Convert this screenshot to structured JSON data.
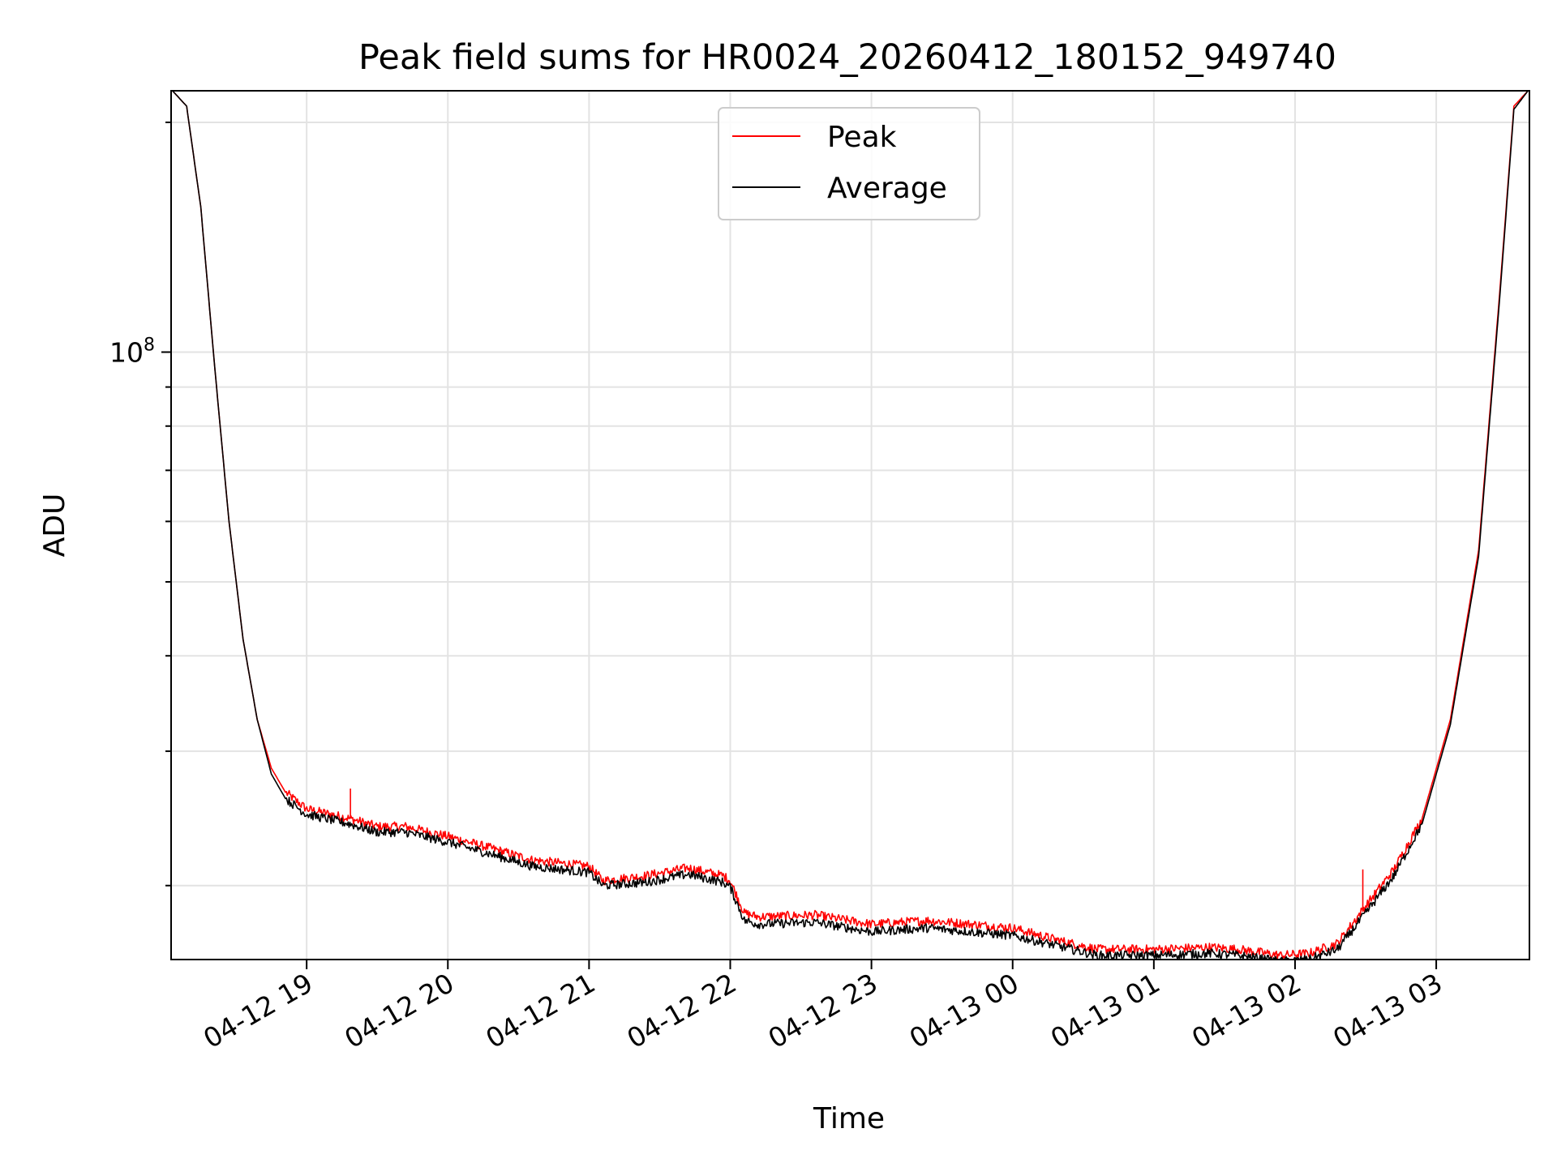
{
  "chart_data": {
    "type": "line",
    "title": "Peak field sums for HR0024_20260412_180152_949740",
    "xlabel": "Time",
    "ylabel": "ADU",
    "yscale": "log",
    "x_unit": "hours since 2026-04-12 00:00",
    "xlim": [
      18.04,
      27.66
    ],
    "ylim": [
      16000000,
      220000000
    ],
    "x_tick_values": [
      19,
      20,
      21,
      22,
      23,
      24,
      25,
      26,
      27
    ],
    "x_tick_labels": [
      "04-12 19",
      "04-12 20",
      "04-12 21",
      "04-12 22",
      "04-12 23",
      "04-13 00",
      "04-13 01",
      "04-13 02",
      "04-13 03"
    ],
    "y_major_ticks": [
      {
        "value": 100000000,
        "base": "10",
        "exp": "8"
      }
    ],
    "y_minor_ticks": [
      20000000,
      30000000,
      40000000,
      50000000,
      60000000,
      70000000,
      80000000,
      90000000,
      200000000
    ],
    "grid": true,
    "legend": {
      "position": "upper-center",
      "entries": [
        "Peak",
        "Average"
      ]
    },
    "series": [
      {
        "name": "Peak",
        "color": "#ff0000",
        "x": [
          18.05,
          18.15,
          18.25,
          18.35,
          18.45,
          18.55,
          18.65,
          18.75,
          18.85,
          19.0,
          19.3,
          19.5,
          19.7,
          20.0,
          20.3,
          20.6,
          21.0,
          21.1,
          21.4,
          21.7,
          21.95,
          22.0,
          22.1,
          22.2,
          22.6,
          23.0,
          23.4,
          23.7,
          24.0,
          24.3,
          24.6,
          25.0,
          25.4,
          25.6,
          25.9,
          26.1,
          26.3,
          26.5,
          26.7,
          26.9,
          27.1,
          27.3,
          27.45,
          27.55,
          27.65
        ],
        "values": [
          220000000,
          210000000,
          155000000,
          95000000,
          60000000,
          42000000,
          33000000,
          28500000,
          26500000,
          25200000,
          24500000,
          23900000,
          23900000,
          23200000,
          22400000,
          21600000,
          21200000,
          20300000,
          20600000,
          21100000,
          20600000,
          20300000,
          18400000,
          18200000,
          18300000,
          17800000,
          18000000,
          17800000,
          17600000,
          17000000,
          16500000,
          16500000,
          16600000,
          16500000,
          16200000,
          16300000,
          16800000,
          18800000,
          21000000,
          24500000,
          33000000,
          55000000,
          120000000,
          210000000,
          220000000
        ]
      },
      {
        "name": "Average",
        "color": "#000000",
        "x": [
          18.05,
          18.15,
          18.25,
          18.35,
          18.45,
          18.55,
          18.65,
          18.75,
          18.85,
          19.0,
          19.3,
          19.5,
          19.7,
          20.0,
          20.3,
          20.6,
          21.0,
          21.1,
          21.4,
          21.7,
          21.95,
          22.0,
          22.1,
          22.2,
          22.6,
          23.0,
          23.4,
          23.7,
          24.0,
          24.3,
          24.6,
          25.0,
          25.4,
          25.6,
          25.9,
          26.1,
          26.3,
          26.5,
          26.7,
          26.9,
          27.1,
          27.3,
          27.45,
          27.55,
          27.65
        ],
        "values": [
          220000000,
          210000000,
          155000000,
          95000000,
          60000000,
          42000000,
          33000000,
          28000000,
          26000000,
          24800000,
          24100000,
          23500000,
          23500000,
          22800000,
          22000000,
          21200000,
          20800000,
          20000000,
          20200000,
          20700000,
          20200000,
          19900000,
          18000000,
          17800000,
          17900000,
          17400000,
          17600000,
          17400000,
          17200000,
          16700000,
          16200000,
          16200000,
          16300000,
          16200000,
          15900000,
          16000000,
          16500000,
          18400000,
          20600000,
          24100000,
          32500000,
          54000000,
          118000000,
          208000000,
          220000000
        ]
      }
    ],
    "spikes": [
      {
        "series": "Peak",
        "x": 19.31,
        "value": 26800000
      },
      {
        "series": "Peak",
        "x": 26.48,
        "value": 21000000
      }
    ]
  }
}
